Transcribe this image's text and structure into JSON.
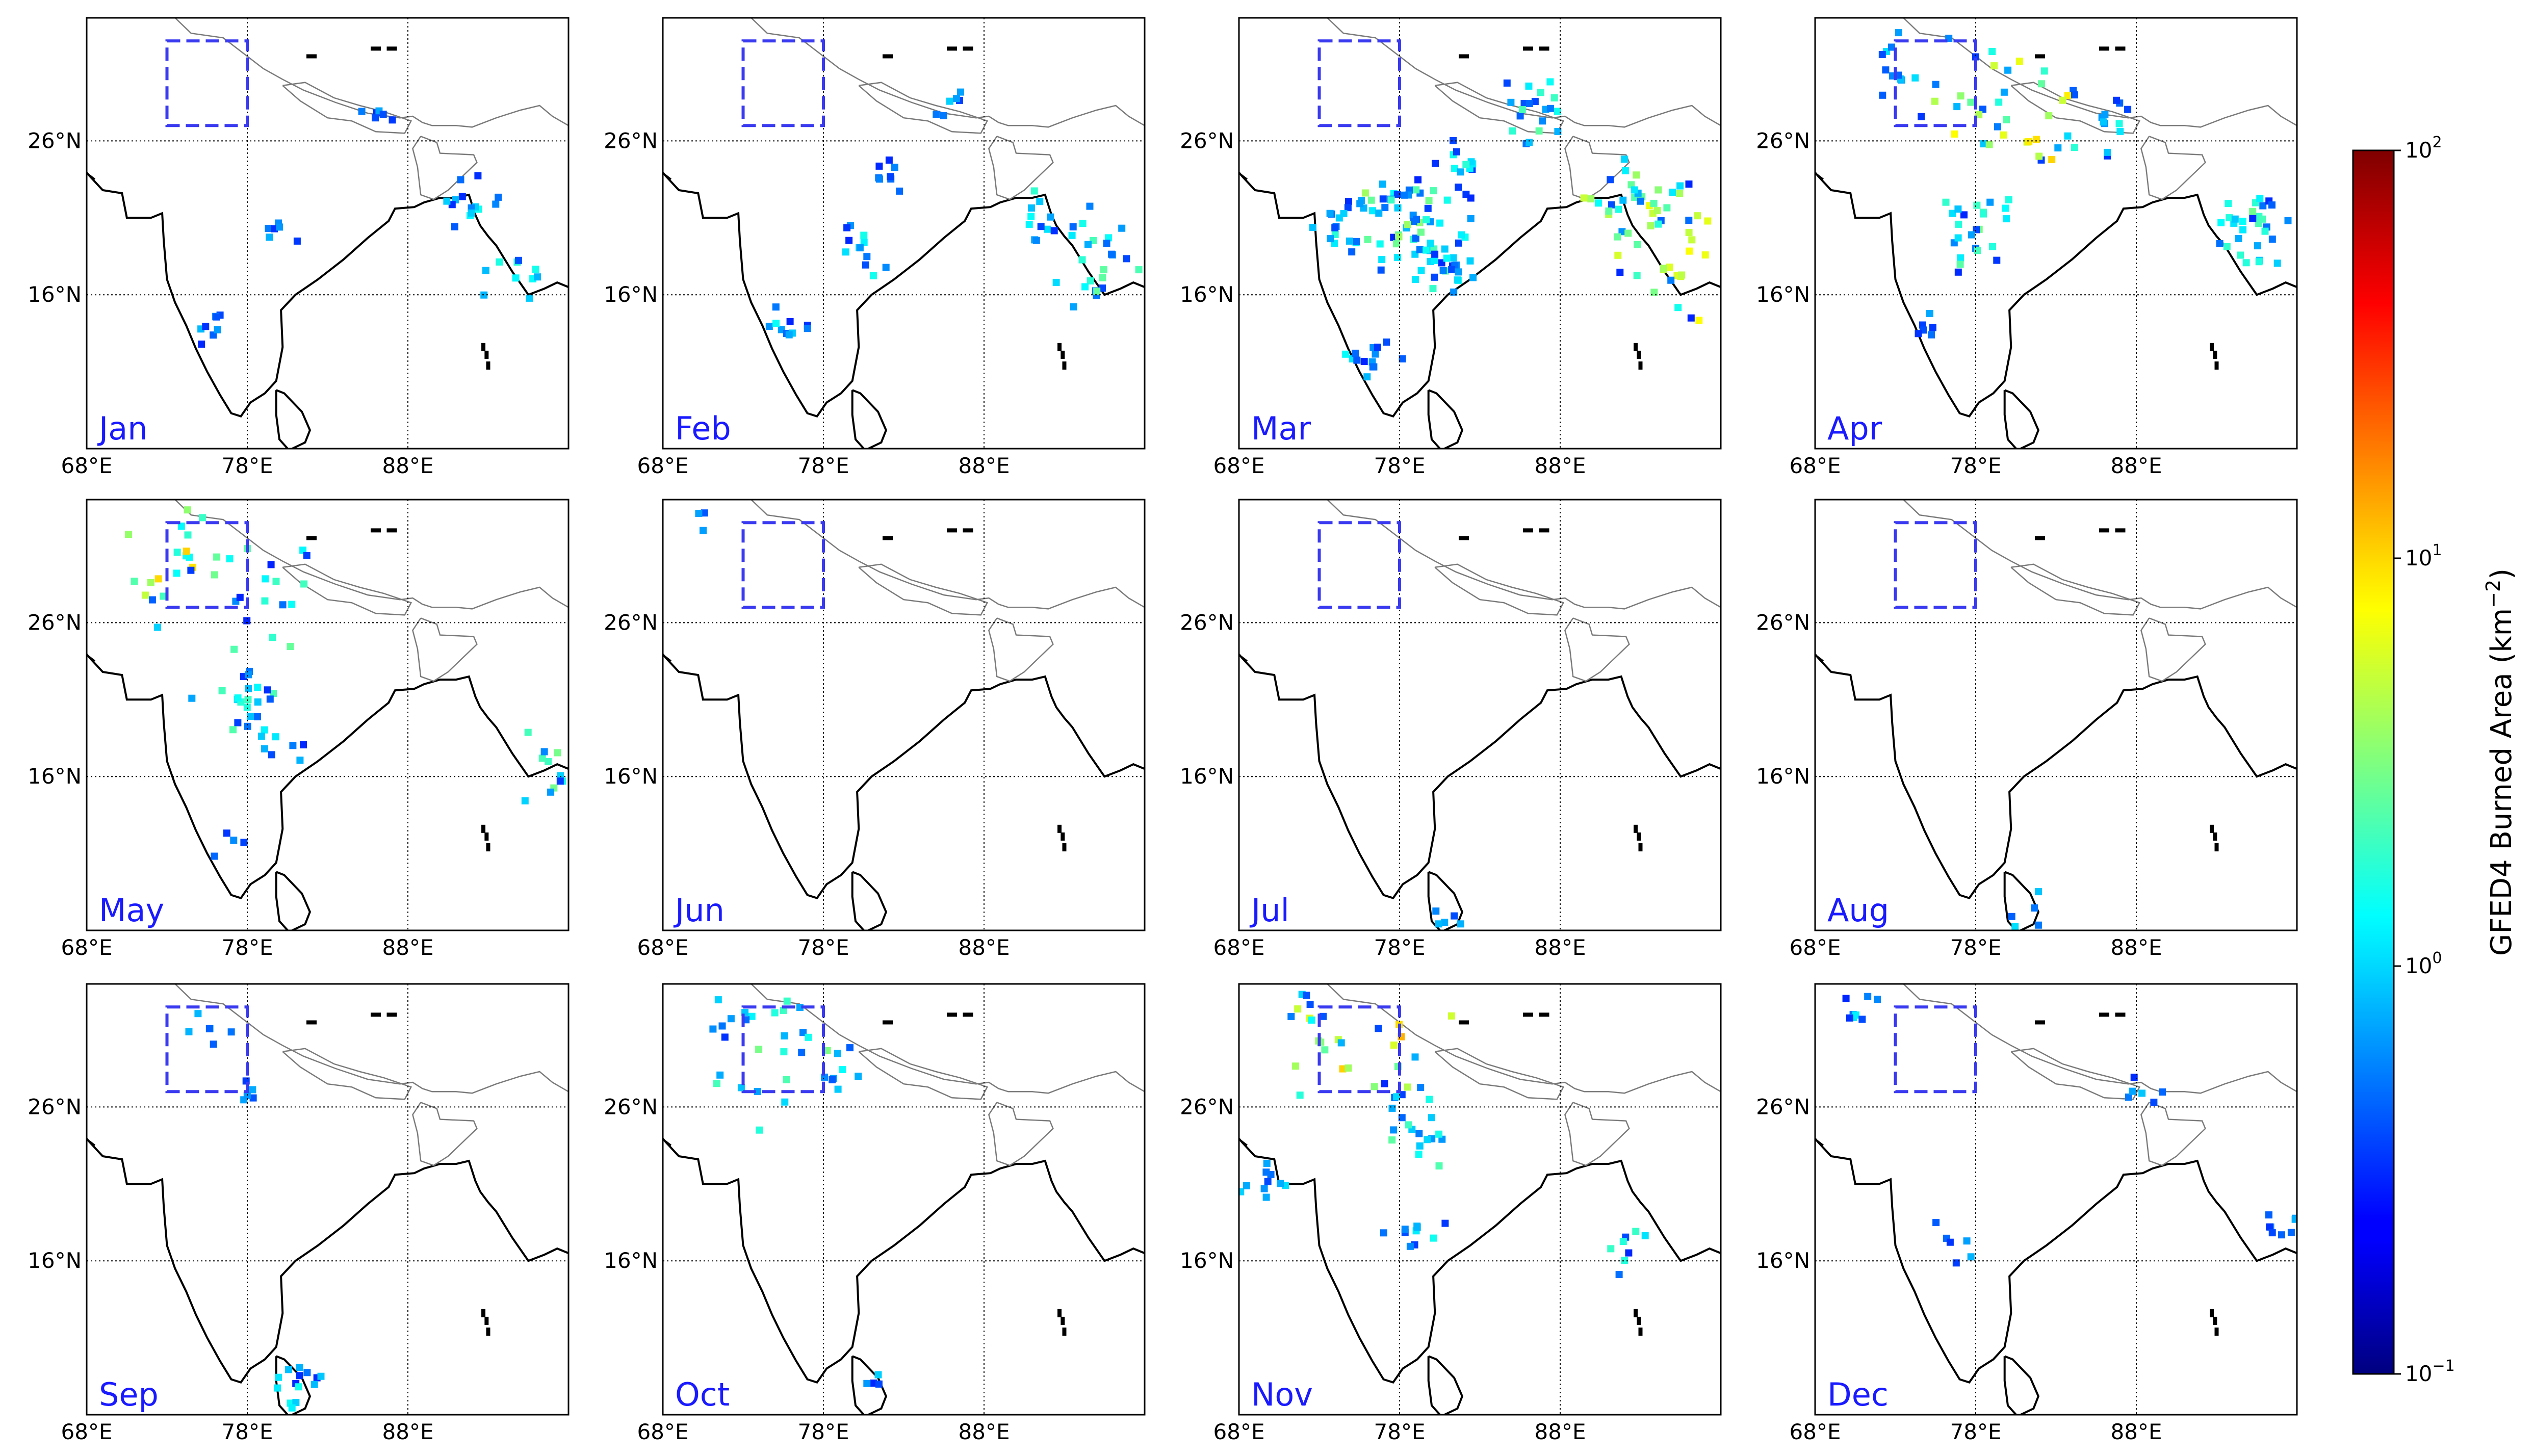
{
  "figure": {
    "months": [
      "Jan",
      "Feb",
      "Mar",
      "Apr",
      "May",
      "Jun",
      "Jul",
      "Aug",
      "Sep",
      "Oct",
      "Nov",
      "Dec"
    ],
    "lon_ticks": [
      "68°E",
      "78°E",
      "88°E"
    ],
    "lat_ticks": [
      "26°N",
      "16°N"
    ],
    "lon_range": [
      68,
      98
    ],
    "lat_range": [
      6,
      34
    ],
    "study_box": {
      "lon": [
        73,
        78
      ],
      "lat": [
        27,
        32.5
      ]
    },
    "colorbar": {
      "label": "GFED4 Burned Area (km",
      "label_sup": "−2",
      "label_end": ")",
      "ticks": [
        {
          "base": "10",
          "exp": "2",
          "value": 100
        },
        {
          "base": "10",
          "exp": "1",
          "value": 10
        },
        {
          "base": "10",
          "exp": "0",
          "value": 1
        },
        {
          "base": "10",
          "exp": "−1",
          "value": 0.1
        }
      ],
      "colormap": "jet",
      "scale": "log"
    },
    "colors": {
      "month_label": "#1a1aff",
      "box": "#3a3af0",
      "coast": "#000000",
      "border": "#7a7a7a"
    }
  },
  "chart_data": {
    "type": "heatmap",
    "title": "",
    "panels": [
      {
        "month": "Jan",
        "clusters": [
          [
            92,
            22,
            14,
            1.5,
            0.6
          ],
          [
            95,
            17,
            10,
            2,
            0.7
          ],
          [
            76,
            14,
            8,
            1,
            0.5
          ],
          [
            80,
            20,
            6,
            0.8,
            0.4
          ],
          [
            86,
            28,
            6,
            0.8,
            0.4
          ]
        ]
      },
      {
        "month": "Feb",
        "clusters": [
          [
            95,
            18,
            22,
            3,
            0.9
          ],
          [
            92,
            21,
            14,
            2,
            0.7
          ],
          [
            80,
            19,
            12,
            2,
            0.7
          ],
          [
            76,
            14,
            10,
            1.5,
            0.5
          ],
          [
            82,
            24,
            8,
            1,
            0.5
          ],
          [
            86,
            28,
            6,
            1,
            0.4
          ]
        ]
      },
      {
        "month": "Mar",
        "clusters": [
          [
            96,
            18,
            30,
            8,
            1.5
          ],
          [
            93,
            22,
            30,
            6,
            1.3
          ],
          [
            78,
            21,
            50,
            4,
            1
          ],
          [
            81,
            18,
            30,
            3,
            0.8
          ],
          [
            76,
            12,
            14,
            1.5,
            0.6
          ],
          [
            86,
            28,
            20,
            3,
            0.8
          ],
          [
            82,
            24,
            14,
            2,
            0.7
          ],
          [
            74,
            20,
            16,
            2,
            0.6
          ]
        ]
      },
      {
        "month": "Apr",
        "clusters": [
          [
            82,
            28,
            22,
            10,
            1.6
          ],
          [
            77,
            29,
            16,
            6,
            1.3
          ],
          [
            78,
            20,
            24,
            3,
            0.9
          ],
          [
            95,
            20,
            30,
            3,
            0.9
          ],
          [
            86,
            27,
            12,
            2,
            0.7
          ],
          [
            73,
            31,
            10,
            1.5,
            0.6
          ],
          [
            75,
            14,
            6,
            1,
            0.5
          ]
        ]
      },
      {
        "month": "May",
        "clusters": [
          [
            75,
            30,
            25,
            12,
            2
          ],
          [
            79,
            28,
            14,
            3,
            1
          ],
          [
            78,
            21,
            22,
            3,
            0.9
          ],
          [
            97,
            17,
            12,
            3,
            0.9
          ],
          [
            80,
            18,
            8,
            1.5,
            0.6
          ],
          [
            76,
            12,
            4,
            1,
            0.5
          ]
        ]
      },
      {
        "month": "Jun",
        "clusters": [
          [
            71,
            33,
            3,
            0.8,
            0.5
          ]
        ]
      },
      {
        "month": "Jul",
        "clusters": [
          [
            81,
            7,
            5,
            1.5,
            0.5
          ]
        ]
      },
      {
        "month": "Aug",
        "clusters": [
          [
            81,
            7,
            5,
            1.2,
            0.5
          ]
        ]
      },
      {
        "month": "Sep",
        "clusters": [
          [
            81,
            8,
            14,
            1.5,
            0.6
          ],
          [
            76,
            31,
            6,
            2.5,
            0.6
          ],
          [
            78,
            27,
            5,
            1,
            0.4
          ]
        ]
      },
      {
        "month": "Oct",
        "clusters": [
          [
            75,
            30,
            20,
            3.5,
            1.3
          ],
          [
            79,
            28,
            8,
            1.5,
            0.6
          ],
          [
            81,
            8,
            4,
            1,
            0.4
          ],
          [
            73,
            31,
            6,
            1,
            0.6
          ]
        ]
      },
      {
        "month": "Nov",
        "clusters": [
          [
            75,
            30,
            24,
            15,
            1.6
          ],
          [
            79,
            25,
            18,
            3,
            0.8
          ],
          [
            70,
            21,
            10,
            1.5,
            0.6
          ],
          [
            79,
            18,
            10,
            1.5,
            0.6
          ],
          [
            92,
            17,
            8,
            2,
            0.6
          ],
          [
            72,
            33,
            6,
            1.5,
            0.6
          ]
        ]
      },
      {
        "month": "Dec",
        "clusters": [
          [
            71,
            33,
            10,
            1.5,
            0.6
          ],
          [
            88,
            27,
            6,
            1,
            0.5
          ],
          [
            97,
            18,
            8,
            1,
            0.5
          ],
          [
            77,
            17,
            6,
            1,
            0.5
          ]
        ]
      }
    ]
  }
}
